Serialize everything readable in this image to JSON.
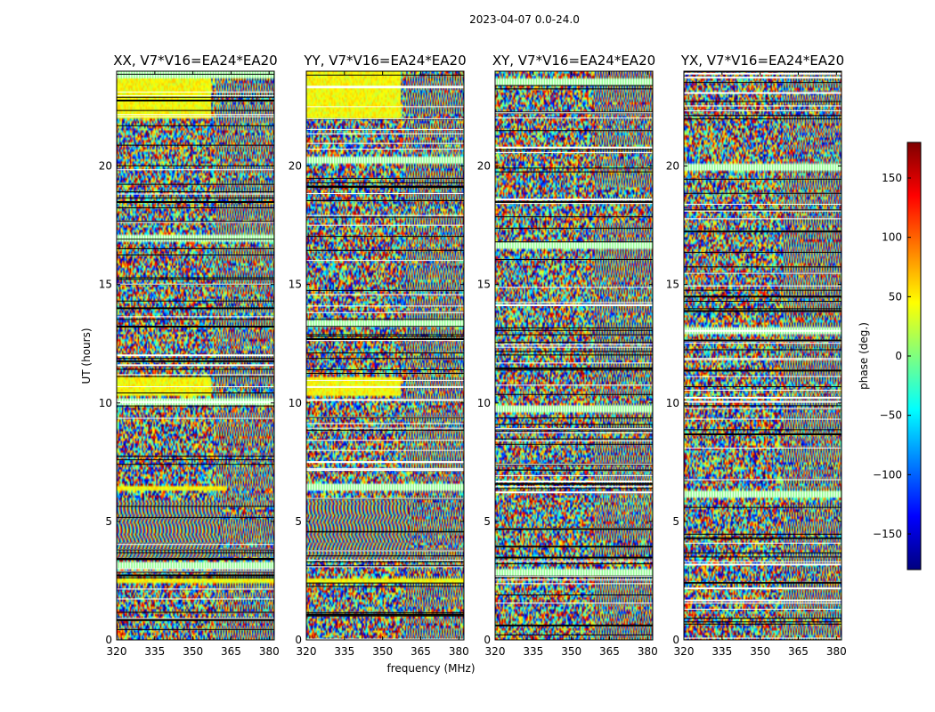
{
  "chart_data": {
    "type": "heatmap",
    "suptitle": "2023-04-07 0.0-24.0",
    "xlabel": "frequency (MHz)",
    "ylabel": "UT (hours)",
    "xlim": [
      320,
      382
    ],
    "ylim": [
      0,
      24
    ],
    "xticks": [
      320,
      335,
      350,
      365,
      380
    ],
    "yticks": [
      0,
      5,
      10,
      15,
      20
    ],
    "panels": [
      {
        "title": "XX, V7*V16=EA24*EA20",
        "polarization": "XX"
      },
      {
        "title": "YY, V7*V16=EA24*EA20",
        "polarization": "YY"
      },
      {
        "title": "XY, V7*V16=EA24*EA20",
        "polarization": "XY"
      },
      {
        "title": "YX, V7*V16=EA24*EA20",
        "polarization": "YX"
      }
    ],
    "colorbar": {
      "label": "phase (deg.)",
      "range": [
        -180,
        180
      ],
      "ticks": [
        -150,
        -100,
        -50,
        0,
        50,
        100,
        150
      ],
      "tick_labels": [
        "−150",
        "−100",
        "−50",
        "0",
        "50",
        "100",
        "150"
      ],
      "colormap": "jet",
      "colors": [
        "#00007f",
        "#0000ff",
        "#007fff",
        "#00ffff",
        "#7fff7f",
        "#ffff00",
        "#ff7f00",
        "#ff0000",
        "#7f0000"
      ]
    }
  }
}
